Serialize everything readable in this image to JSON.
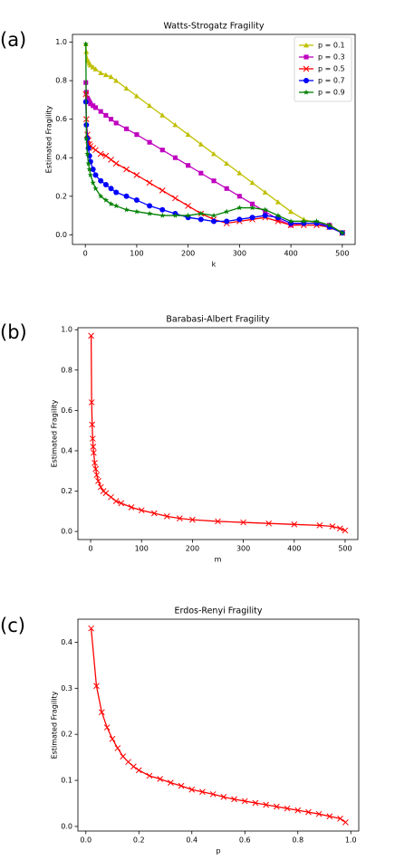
{
  "chart_data": [
    {
      "type": "line",
      "panel_label": "(a)",
      "title": "Watts-Strogatz Fragility",
      "x_label": "k",
      "y_label": "Estimated Fragility",
      "x": [
        1,
        2,
        4,
        6,
        8,
        10,
        15,
        20,
        30,
        40,
        50,
        60,
        80,
        100,
        125,
        150,
        175,
        200,
        225,
        250,
        275,
        300,
        325,
        350,
        375,
        400,
        425,
        450,
        475,
        500
      ],
      "series": [
        {
          "name": "p = 0.1",
          "color": "#bfbf00",
          "marker": "triangle",
          "values": [
            0.99,
            0.95,
            0.91,
            0.9,
            0.89,
            0.88,
            0.87,
            0.86,
            0.84,
            0.83,
            0.82,
            0.8,
            0.76,
            0.72,
            0.67,
            0.62,
            0.57,
            0.52,
            0.47,
            0.42,
            0.37,
            0.32,
            0.27,
            0.22,
            0.17,
            0.12,
            0.08,
            0.06,
            0.05,
            0.01
          ]
        },
        {
          "name": "p = 0.3",
          "color": "#bf00bf",
          "marker": "square",
          "values": [
            0.79,
            0.74,
            0.71,
            0.7,
            0.69,
            0.68,
            0.67,
            0.66,
            0.64,
            0.62,
            0.6,
            0.58,
            0.55,
            0.52,
            0.48,
            0.44,
            0.4,
            0.36,
            0.32,
            0.28,
            0.24,
            0.2,
            0.16,
            0.12,
            0.08,
            0.05,
            0.06,
            0.06,
            0.05,
            0.01
          ]
        },
        {
          "name": "p = 0.5",
          "color": "#ff0000",
          "marker": "x",
          "values": [
            0.73,
            0.6,
            0.52,
            0.49,
            0.47,
            0.46,
            0.45,
            0.44,
            0.42,
            0.41,
            0.39,
            0.37,
            0.34,
            0.31,
            0.27,
            0.23,
            0.19,
            0.15,
            0.11,
            0.08,
            0.06,
            0.07,
            0.08,
            0.09,
            0.07,
            0.05,
            0.05,
            0.05,
            0.04,
            0.01
          ]
        },
        {
          "name": "p = 0.7",
          "color": "#0000ff",
          "marker": "circle",
          "values": [
            0.69,
            0.57,
            0.5,
            0.45,
            0.41,
            0.38,
            0.34,
            0.31,
            0.28,
            0.26,
            0.24,
            0.22,
            0.2,
            0.18,
            0.15,
            0.13,
            0.11,
            0.09,
            0.08,
            0.07,
            0.07,
            0.08,
            0.09,
            0.1,
            0.09,
            0.06,
            0.06,
            0.06,
            0.04,
            0.01
          ]
        },
        {
          "name": "p = 0.9",
          "color": "#008000",
          "marker": "star",
          "values": [
            0.99,
            0.5,
            0.42,
            0.37,
            0.34,
            0.31,
            0.27,
            0.24,
            0.2,
            0.18,
            0.16,
            0.15,
            0.13,
            0.12,
            0.11,
            0.1,
            0.1,
            0.1,
            0.11,
            0.1,
            0.12,
            0.14,
            0.14,
            0.13,
            0.1,
            0.07,
            0.07,
            0.07,
            0.05,
            0.01
          ]
        }
      ],
      "xlim": [
        -25,
        525
      ],
      "xticks": [
        0,
        100,
        200,
        300,
        400,
        500
      ],
      "ylim": [
        -0.05,
        1.04
      ],
      "yticks": [
        {
          "value": 0,
          "label": "0.0"
        },
        0.2,
        0.4,
        0.6,
        0.8,
        {
          "value": 1,
          "label": "1.0"
        }
      ],
      "legend": "upper right"
    },
    {
      "type": "line",
      "panel_label": "(b)",
      "title": "Barabasi-Albert Fragility",
      "x_label": "m",
      "y_label": "Estimated Fragility",
      "x": [
        1,
        2,
        3,
        4,
        5,
        6,
        8,
        10,
        12,
        15,
        20,
        25,
        30,
        40,
        50,
        60,
        80,
        100,
        125,
        150,
        175,
        200,
        250,
        300,
        350,
        400,
        450,
        475,
        490,
        500
      ],
      "values": [
        0.97,
        0.64,
        0.53,
        0.46,
        0.42,
        0.39,
        0.34,
        0.31,
        0.28,
        0.25,
        0.22,
        0.2,
        0.19,
        0.17,
        0.15,
        0.14,
        0.12,
        0.105,
        0.09,
        0.075,
        0.065,
        0.058,
        0.05,
        0.045,
        0.04,
        0.035,
        0.03,
        0.025,
        0.015,
        0.005
      ],
      "color": "#ff0000",
      "marker": "x",
      "xlim": [
        -25,
        525
      ],
      "xticks": [
        0,
        100,
        200,
        300,
        400,
        500
      ],
      "ylim": [
        -0.04,
        1.01
      ],
      "yticks": [
        {
          "value": 0,
          "label": "0.0"
        },
        0.2,
        0.4,
        0.6,
        0.8,
        {
          "value": 1,
          "label": "1.0"
        }
      ]
    },
    {
      "type": "line",
      "panel_label": "(c)",
      "title": "Erdos-Renyi Fragility",
      "x_label": "p",
      "y_label": "Estimated Fragility",
      "x": [
        0.02,
        0.04,
        0.06,
        0.08,
        0.1,
        0.12,
        0.14,
        0.16,
        0.18,
        0.2,
        0.24,
        0.28,
        0.32,
        0.36,
        0.4,
        0.44,
        0.48,
        0.52,
        0.56,
        0.6,
        0.64,
        0.68,
        0.72,
        0.76,
        0.8,
        0.84,
        0.88,
        0.92,
        0.96,
        0.98
      ],
      "values": [
        0.43,
        0.305,
        0.248,
        0.215,
        0.19,
        0.17,
        0.152,
        0.14,
        0.13,
        0.122,
        0.11,
        0.103,
        0.095,
        0.088,
        0.08,
        0.075,
        0.07,
        0.064,
        0.059,
        0.055,
        0.051,
        0.047,
        0.043,
        0.039,
        0.035,
        0.031,
        0.027,
        0.022,
        0.017,
        0.009
      ],
      "color": "#ff0000",
      "marker": "x",
      "xlim": [
        -0.03,
        1.03
      ],
      "xticks": [
        {
          "value": 0,
          "label": "0.0"
        },
        0.2,
        0.4,
        0.6,
        0.8,
        {
          "value": 1,
          "label": "1.0"
        }
      ],
      "ylim": [
        -0.01,
        0.45
      ],
      "yticks": [
        {
          "value": 0,
          "label": "0.0"
        },
        0.1,
        0.2,
        0.3,
        0.4
      ]
    }
  ]
}
